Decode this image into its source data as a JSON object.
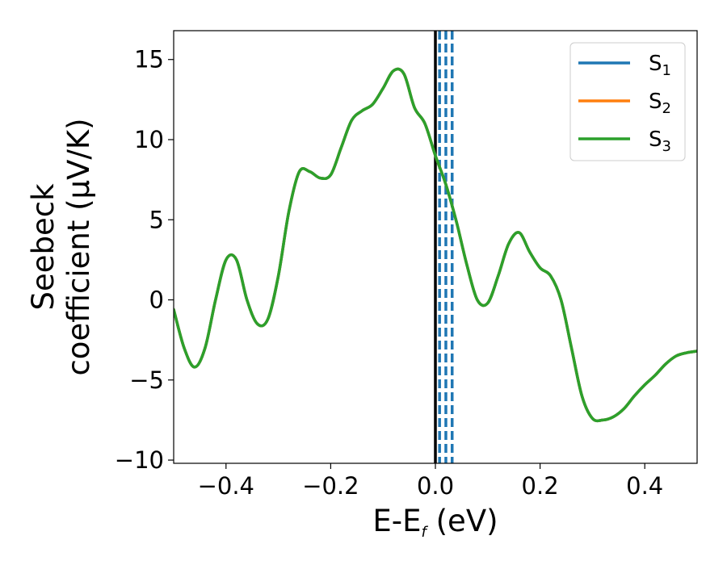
{
  "chart_data": {
    "type": "line",
    "xlabel": {
      "main": "E-E",
      "sub": "f",
      "tail": " (eV)"
    },
    "ylabel": {
      "line1": "Seebeck",
      "line2": "coefficient  (μV/K)"
    },
    "xlim": [
      -0.5,
      0.5
    ],
    "ylim": [
      -10.2,
      16.8
    ],
    "xticks": [
      -0.4,
      -0.2,
      0.0,
      0.2,
      0.4
    ],
    "xtick_labels": [
      "−0.4",
      "−0.2",
      "0.0",
      "0.2",
      "0.4"
    ],
    "yticks": [
      -10,
      -5,
      0,
      5,
      10,
      15
    ],
    "ytick_labels": [
      "−10",
      "−5",
      "0",
      "5",
      "10",
      "15"
    ],
    "grid": false,
    "legend_position": "top-right",
    "fermi_line": {
      "x": 0.0,
      "color": "#000000"
    },
    "dashed_lines": {
      "x": [
        0.008,
        0.02,
        0.032
      ],
      "color": "#1f77b4"
    },
    "series": [
      {
        "name": "S",
        "sub": "1",
        "color": "#1f77b4",
        "x": [
          -0.5,
          -0.48,
          -0.46,
          -0.44,
          -0.42,
          -0.4,
          -0.38,
          -0.36,
          -0.34,
          -0.32,
          -0.3,
          -0.28,
          -0.26,
          -0.24,
          -0.22,
          -0.2,
          -0.18,
          -0.16,
          -0.14,
          -0.12,
          -0.1,
          -0.08,
          -0.06,
          -0.04,
          -0.02,
          0.0,
          0.02,
          0.04,
          0.06,
          0.08,
          0.1,
          0.12,
          0.14,
          0.16,
          0.18,
          0.2,
          0.22,
          0.24,
          0.26,
          0.28,
          0.3,
          0.32,
          0.34,
          0.36,
          0.38,
          0.4,
          0.42,
          0.44,
          0.46,
          0.48,
          0.5
        ],
        "y": [
          -0.6,
          -3.0,
          -4.2,
          -3.0,
          0.0,
          2.5,
          2.5,
          0.0,
          -1.5,
          -1.2,
          1.5,
          5.5,
          8.0,
          8.0,
          7.6,
          7.8,
          9.5,
          11.2,
          11.8,
          12.2,
          13.2,
          14.3,
          14.1,
          12.0,
          11.0,
          9.0,
          7.2,
          4.9,
          2.2,
          0.0,
          -0.2,
          1.5,
          3.5,
          4.2,
          3.0,
          2.0,
          1.5,
          0.0,
          -3.0,
          -6.0,
          -7.4,
          -7.5,
          -7.3,
          -6.8,
          -6.0,
          -5.3,
          -4.7,
          -4.0,
          -3.5,
          -3.3,
          -3.2
        ]
      },
      {
        "name": "S",
        "sub": "2",
        "color": "#ff7f0e",
        "x": [
          -0.5,
          -0.48,
          -0.46,
          -0.44,
          -0.42,
          -0.4,
          -0.38,
          -0.36,
          -0.34,
          -0.32,
          -0.3,
          -0.28,
          -0.26,
          -0.24,
          -0.22,
          -0.2,
          -0.18,
          -0.16,
          -0.14,
          -0.12,
          -0.1,
          -0.08,
          -0.06,
          -0.04,
          -0.02,
          0.0,
          0.02,
          0.04,
          0.06,
          0.08,
          0.1,
          0.12,
          0.14,
          0.16,
          0.18,
          0.2,
          0.22,
          0.24,
          0.26,
          0.28,
          0.3,
          0.32,
          0.34,
          0.36,
          0.38,
          0.4,
          0.42,
          0.44,
          0.46,
          0.48,
          0.5
        ],
        "y": [
          -0.6,
          -3.0,
          -4.2,
          -3.0,
          0.0,
          2.5,
          2.5,
          0.0,
          -1.5,
          -1.2,
          1.5,
          5.5,
          8.0,
          8.0,
          7.6,
          7.8,
          9.5,
          11.2,
          11.8,
          12.2,
          13.2,
          14.3,
          14.1,
          12.0,
          11.0,
          9.0,
          7.2,
          4.9,
          2.2,
          0.0,
          -0.2,
          1.5,
          3.5,
          4.2,
          3.0,
          2.0,
          1.5,
          0.0,
          -3.0,
          -6.0,
          -7.4,
          -7.5,
          -7.3,
          -6.8,
          -6.0,
          -5.3,
          -4.7,
          -4.0,
          -3.5,
          -3.3,
          -3.2
        ]
      },
      {
        "name": "S",
        "sub": "3",
        "color": "#2ca02c",
        "x": [
          -0.5,
          -0.48,
          -0.46,
          -0.44,
          -0.42,
          -0.4,
          -0.38,
          -0.36,
          -0.34,
          -0.32,
          -0.3,
          -0.28,
          -0.26,
          -0.24,
          -0.22,
          -0.2,
          -0.18,
          -0.16,
          -0.14,
          -0.12,
          -0.1,
          -0.08,
          -0.06,
          -0.04,
          -0.02,
          0.0,
          0.02,
          0.04,
          0.06,
          0.08,
          0.1,
          0.12,
          0.14,
          0.16,
          0.18,
          0.2,
          0.22,
          0.24,
          0.26,
          0.28,
          0.3,
          0.32,
          0.34,
          0.36,
          0.38,
          0.4,
          0.42,
          0.44,
          0.46,
          0.48,
          0.5
        ],
        "y": [
          -0.6,
          -3.0,
          -4.2,
          -3.0,
          0.0,
          2.5,
          2.5,
          0.0,
          -1.5,
          -1.2,
          1.5,
          5.5,
          8.0,
          8.0,
          7.6,
          7.8,
          9.5,
          11.2,
          11.8,
          12.2,
          13.2,
          14.3,
          14.1,
          12.0,
          11.0,
          9.0,
          7.2,
          4.9,
          2.2,
          0.0,
          -0.2,
          1.5,
          3.5,
          4.2,
          3.0,
          2.0,
          1.5,
          0.0,
          -3.0,
          -6.0,
          -7.4,
          -7.5,
          -7.3,
          -6.8,
          -6.0,
          -5.3,
          -4.7,
          -4.0,
          -3.5,
          -3.3,
          -3.2
        ]
      }
    ]
  }
}
